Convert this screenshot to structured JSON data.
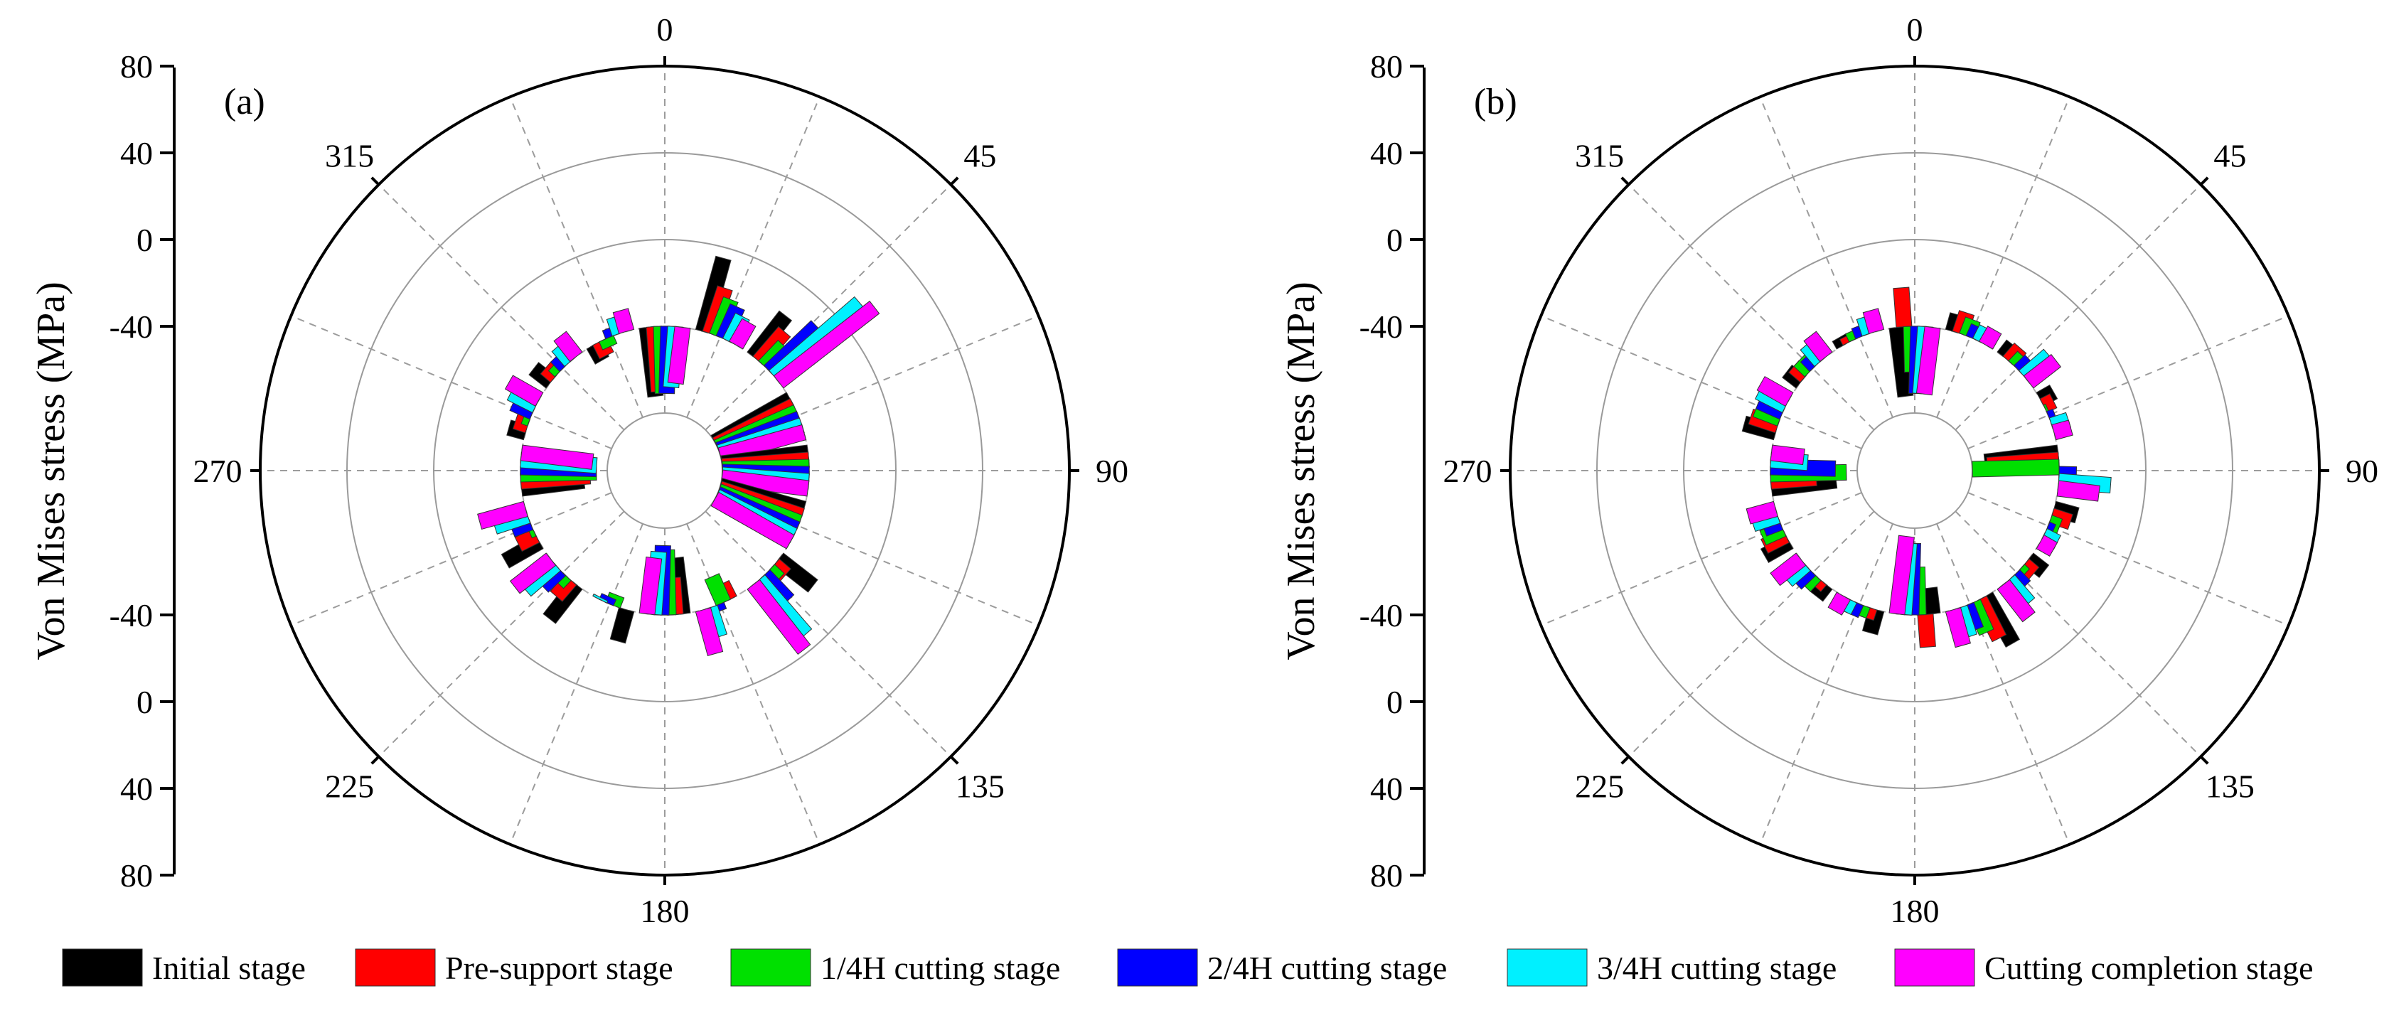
{
  "chart_data": [
    {
      "type": "polar-bar",
      "panel_label": "(a)",
      "ylabel": "Von Mises stress (MPa)",
      "y_ticks_top": [
        "80",
        "40",
        "0",
        "-40"
      ],
      "y_ticks_bottom": [
        "-40",
        "0",
        "40",
        "80"
      ],
      "angle_labels": [
        "0",
        "45",
        "90",
        "135",
        "180",
        "225",
        "270",
        "315"
      ],
      "radial_range": [
        -80,
        80
      ],
      "angles_deg": [
        0,
        22.5,
        45,
        67.5,
        90,
        112.5,
        135,
        157.5,
        180,
        202.5,
        225,
        247.5,
        270,
        292.5,
        315,
        337.5
      ],
      "series": [
        {
          "name": "Initial stage",
          "color": "#000000",
          "values": [
            -72,
            -5,
            -16,
            -80,
            -80,
            -80,
            -20,
            -40,
            -66,
            -25,
            -20,
            -22,
            -69,
            -32,
            -30,
            -48
          ]
        },
        {
          "name": "Pre-support stage",
          "color": "#ff0000",
          "values": [
            -70,
            -18,
            -22,
            -80,
            -80,
            -80,
            -33,
            -48,
            -57,
            -40,
            -30,
            -31,
            -72,
            -34,
            -34,
            -47
          ]
        },
        {
          "name": "1/4H cutting stage",
          "color": "#00e000",
          "values": [
            -71,
            -22,
            -27,
            -80,
            -80,
            -80,
            -34,
            -53,
            -70,
            -45,
            -35,
            -38,
            -75,
            -37,
            -36,
            -44
          ]
        },
        {
          "name": "2/4H cutting stage",
          "color": "#0000ff",
          "values": [
            -71,
            -24,
            -10,
            -80,
            -80,
            -80,
            -24,
            -37,
            -72,
            -43,
            -29,
            -31,
            -75,
            -30,
            -34,
            -36
          ]
        },
        {
          "name": "3/4H cutting stage",
          "color": "#00f0ff",
          "values": [
            -68,
            -27,
            12,
            -80,
            -80,
            -80,
            -7,
            -26,
            -69,
            -41,
            -22,
            -24,
            -75,
            -27,
            -31,
            -32
          ]
        },
        {
          "name": "Cutting completion stage",
          "color": "#ff00ff",
          "values": [
            -66,
            -28,
            16,
            -80,
            -80,
            -80,
            -2,
            -19,
            -66,
            -40,
            -19,
            -18,
            -73,
            -24,
            -28,
            -30
          ]
        }
      ]
    },
    {
      "type": "polar-bar",
      "panel_label": "(b)",
      "ylabel": "Von Mises stress (MPa)",
      "y_ticks_top": [
        "80",
        "40",
        "0",
        "-40"
      ],
      "y_ticks_bottom": [
        "-40",
        "0",
        "40",
        "80"
      ],
      "angle_labels": [
        "0",
        "45",
        "90",
        "135",
        "180",
        "225",
        "270",
        "315"
      ],
      "radial_range": [
        -80,
        80
      ],
      "angles_deg": [
        0,
        22.5,
        45,
        67.5,
        90,
        112.5,
        135,
        157.5,
        180,
        202.5,
        225,
        247.5,
        270,
        292.5,
        315,
        337.5
      ],
      "series": [
        {
          "name": "Initial stage",
          "color": "#000000",
          "values": [
            -72,
            -32,
            -33,
            -33,
            -74,
            -29,
            -31,
            -15,
            -52,
            -29,
            -33,
            -27,
            -70,
            -25,
            -32,
            -36
          ]
        },
        {
          "name": "Pre-support stage",
          "color": "#ff0000",
          "values": [
            -22,
            -30,
            -32,
            -35,
            -73,
            -31,
            -34,
            -20,
            -25,
            -35,
            -36,
            -29,
            -61,
            -27,
            -33,
            -37
          ]
        },
        {
          "name": "1/4H cutting stage",
          "color": "#00e000",
          "values": [
            -61,
            -32,
            -34,
            -39,
            -80,
            -35,
            -37,
            -25,
            -62,
            -35,
            -33,
            -30,
            -75,
            -28,
            -33,
            -36
          ]
        },
        {
          "name": "2/4H cutting stage",
          "color": "#0000ff",
          "values": [
            -71,
            -34,
            -33,
            -37,
            -32,
            -37,
            -33,
            -28,
            -73,
            -34,
            -31,
            -32,
            -70,
            -28,
            -34,
            -35
          ]
        },
        {
          "name": "3/4H cutting stage",
          "color": "#00f0ff",
          "values": [
            -71,
            -33,
            -25,
            -32,
            -16,
            -33,
            -26,
            -26,
            -73,
            -34,
            -29,
            -28,
            -57,
            -26,
            -30,
            -32
          ]
        },
        {
          "name": "Cutting completion stage",
          "color": "#ff00ff",
          "values": [
            -71,
            -32,
            -24,
            -32,
            -21,
            -33,
            -21,
            -23,
            -76,
            -32,
            -25,
            -27,
            -55,
            -25,
            -28,
            -30
          ]
        }
      ]
    }
  ],
  "legend": {
    "items": [
      {
        "label": "Initial stage",
        "color": "#000000"
      },
      {
        "label": "Pre-support stage",
        "color": "#ff0000"
      },
      {
        "label": "1/4H cutting stage",
        "color": "#00e000"
      },
      {
        "label": "2/4H cutting stage",
        "color": "#0000ff"
      },
      {
        "label": "3/4H cutting stage",
        "color": "#00f0ff"
      },
      {
        "label": "Cutting completion stage",
        "color": "#ff00ff"
      }
    ]
  }
}
